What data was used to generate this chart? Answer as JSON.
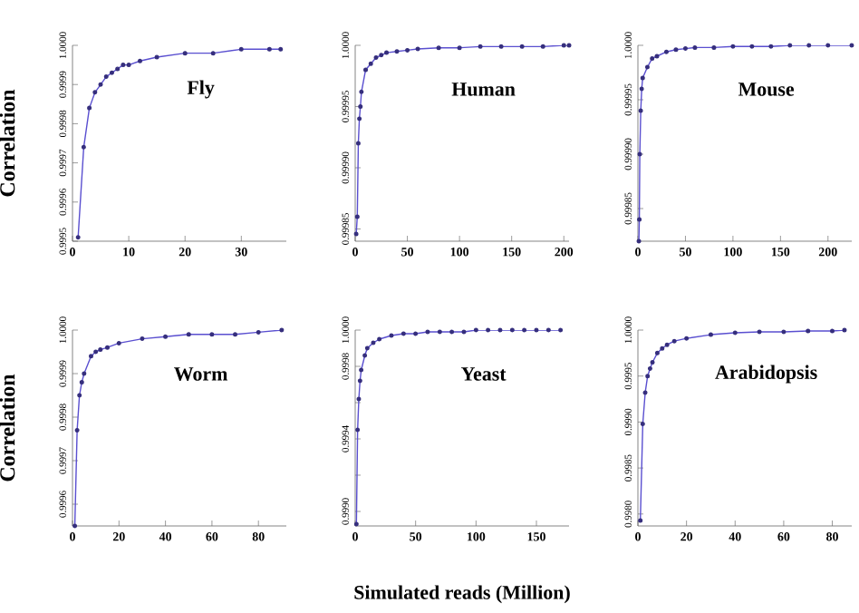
{
  "chart_data": [
    {
      "type": "line",
      "title": "Fly",
      "ylabel": "Correlation",
      "marker": "circle",
      "line_style": "solid",
      "xlim": [
        0,
        38
      ],
      "xticks": [
        0,
        10,
        20,
        30
      ],
      "ylim": [
        0.9995,
        1.0
      ],
      "yticks": [
        {
          "value": 0.9995,
          "label": "0.9995"
        },
        {
          "value": 0.9996,
          "label": "0.9996"
        },
        {
          "value": 0.9997,
          "label": "0.9997"
        },
        {
          "value": 0.9998,
          "label": "0.9998"
        },
        {
          "value": 0.9999,
          "label": "0.9999"
        },
        {
          "value": 1.0,
          "label": "1.0000"
        }
      ],
      "series": [
        {
          "color": "#5a4fd0",
          "x": [
            1,
            2,
            3,
            4,
            5,
            6,
            7,
            8,
            9,
            10,
            12,
            15,
            20,
            25,
            30,
            35,
            37
          ],
          "values": [
            0.99951,
            0.99974,
            0.99984,
            0.99988,
            0.9999,
            0.99992,
            0.99993,
            0.99994,
            0.99995,
            0.99995,
            0.99996,
            0.99997,
            0.99998,
            0.99998,
            0.99999,
            0.99999,
            0.99999
          ]
        }
      ]
    },
    {
      "type": "line",
      "title": "Human",
      "marker": "circle",
      "line_style": "solid",
      "xlim": [
        0,
        205
      ],
      "xticks": [
        0,
        50,
        100,
        150,
        200
      ],
      "ylim": [
        0.99984,
        1.0
      ],
      "yticks": [
        {
          "value": 0.99985,
          "label": "0.99985"
        },
        {
          "value": 0.9999,
          "label": "0.99990"
        },
        {
          "value": 0.99995,
          "label": "0.99995"
        },
        {
          "value": 1.0,
          "label": "1.0000"
        }
      ],
      "series": [
        {
          "color": "#5a4fd0",
          "x": [
            1,
            2,
            3,
            4,
            5,
            6,
            10,
            15,
            20,
            25,
            30,
            40,
            50,
            60,
            80,
            100,
            120,
            140,
            160,
            180,
            200,
            205
          ],
          "values": [
            0.999846,
            0.99986,
            0.99992,
            0.99994,
            0.99995,
            0.999962,
            0.99998,
            0.999985,
            0.99999,
            0.999992,
            0.999994,
            0.999995,
            0.999996,
            0.999997,
            0.999998,
            0.999998,
            0.999999,
            0.999999,
            0.999999,
            0.999999,
            1.0,
            1.0
          ]
        }
      ]
    },
    {
      "type": "line",
      "title": "Mouse",
      "marker": "circle",
      "line_style": "solid",
      "xlim": [
        0,
        225
      ],
      "xticks": [
        0,
        50,
        100,
        150,
        200
      ],
      "ylim": [
        0.99982,
        1.0
      ],
      "yticks": [
        {
          "value": 0.99985,
          "label": "0.99985"
        },
        {
          "value": 0.9999,
          "label": "0.99990"
        },
        {
          "value": 0.99995,
          "label": "0.99995"
        },
        {
          "value": 1.0,
          "label": "1.0000"
        }
      ],
      "series": [
        {
          "color": "#5a4fd0",
          "x": [
            1,
            1.5,
            2,
            3,
            4,
            5,
            10,
            15,
            20,
            30,
            40,
            50,
            60,
            80,
            100,
            120,
            140,
            160,
            180,
            200,
            225
          ],
          "values": [
            0.99982,
            0.99984,
            0.9999,
            0.99994,
            0.99996,
            0.99997,
            0.99998,
            0.999988,
            0.99999,
            0.999994,
            0.999996,
            0.999997,
            0.999998,
            0.999998,
            0.999999,
            0.999999,
            0.999999,
            1.0,
            1.0,
            1.0,
            1.0
          ]
        }
      ]
    },
    {
      "type": "line",
      "title": "Worm",
      "ylabel": "Correlation",
      "marker": "circle",
      "line_style": "solid",
      "xlim": [
        0,
        92
      ],
      "xticks": [
        0,
        20,
        40,
        60,
        80
      ],
      "ylim": [
        0.99955,
        1.0
      ],
      "yticks": [
        {
          "value": 0.9996,
          "label": "0.9996"
        },
        {
          "value": 0.9997,
          "label": "0.9997"
        },
        {
          "value": 0.9998,
          "label": "0.9998"
        },
        {
          "value": 0.9999,
          "label": "0.9999"
        },
        {
          "value": 1.0,
          "label": "1.0000"
        }
      ],
      "series": [
        {
          "color": "#5a4fd0",
          "x": [
            1,
            2,
            3,
            4,
            5,
            8,
            10,
            12,
            15,
            20,
            30,
            40,
            50,
            60,
            70,
            80,
            90
          ],
          "values": [
            0.99955,
            0.99977,
            0.99985,
            0.99988,
            0.9999,
            0.99994,
            0.99995,
            0.999955,
            0.99996,
            0.99997,
            0.99998,
            0.999985,
            0.99999,
            0.99999,
            0.99999,
            0.999995,
            1.0
          ]
        }
      ]
    },
    {
      "type": "line",
      "title": "Yeast",
      "xlabel": "Simulated reads (Million)",
      "marker": "circle",
      "line_style": "solid",
      "xlim": [
        0,
        177
      ],
      "xticks": [
        0,
        50,
        100,
        150
      ],
      "ylim": [
        0.99892,
        1.0
      ],
      "yticks": [
        {
          "value": 0.999,
          "label": "0.9990"
        },
        {
          "value": 0.9992,
          "label": null
        },
        {
          "value": 0.9994,
          "label": "0.9994"
        },
        {
          "value": 0.9996,
          "label": null
        },
        {
          "value": 0.9998,
          "label": "0.9998"
        },
        {
          "value": 1.0,
          "label": "1.0000"
        }
      ],
      "series": [
        {
          "color": "#5a4fd0",
          "x": [
            1,
            2,
            3,
            4,
            5,
            8,
            10,
            15,
            20,
            30,
            40,
            50,
            60,
            70,
            80,
            90,
            100,
            110,
            120,
            130,
            140,
            150,
            160,
            170
          ],
          "values": [
            0.99893,
            0.99945,
            0.99962,
            0.99972,
            0.99978,
            0.99986,
            0.9999,
            0.99993,
            0.99995,
            0.99997,
            0.99998,
            0.99998,
            0.99999,
            0.99999,
            0.99999,
            0.99999,
            1.0,
            1.0,
            1.0,
            1.0,
            1.0,
            1.0,
            1.0,
            1.0
          ]
        }
      ]
    },
    {
      "type": "line",
      "title": "Arabidopsis",
      "marker": "circle",
      "line_style": "solid",
      "xlim": [
        0,
        88
      ],
      "xticks": [
        0,
        20,
        40,
        60,
        80
      ],
      "ylim": [
        0.99787,
        1.0
      ],
      "yticks": [
        {
          "value": 0.998,
          "label": "0.9980"
        },
        {
          "value": 0.9985,
          "label": "0.9985"
        },
        {
          "value": 0.999,
          "label": "0.9990"
        },
        {
          "value": 0.9995,
          "label": "0.9995"
        },
        {
          "value": 1.0,
          "label": "1.0000"
        }
      ],
      "series": [
        {
          "color": "#5a4fd0",
          "x": [
            1,
            2,
            3,
            4,
            5,
            6,
            8,
            10,
            12,
            15,
            20,
            30,
            40,
            50,
            60,
            70,
            80,
            85
          ],
          "values": [
            0.99793,
            0.99898,
            0.99932,
            0.9995,
            0.99958,
            0.99965,
            0.99975,
            0.9998,
            0.99984,
            0.99988,
            0.99991,
            0.99995,
            0.99997,
            0.99998,
            0.99998,
            0.99999,
            0.99999,
            1.0
          ]
        }
      ]
    }
  ]
}
